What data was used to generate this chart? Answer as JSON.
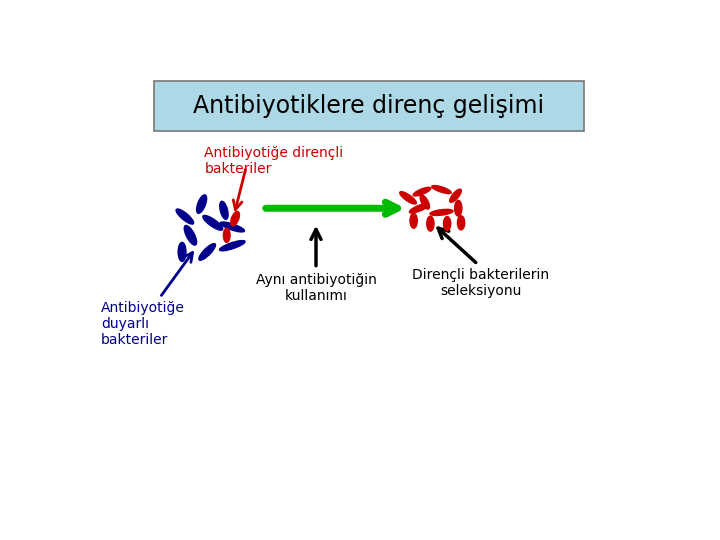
{
  "title": "Antibiyotiklere direnç gelişimi",
  "title_bg": "#add8e6",
  "label_resistant_left": "Antibiyotiğe dirençli\nbakteriler",
  "label_sensitive": "Antibiyotiğe\nduyarlı\nbakteriler",
  "label_middle": "Aynı antibiyotiğin\nkullanımı",
  "label_resistant_right": "Dirençli bakterilerin\nseleksiyonu",
  "color_resistant": "#cc0000",
  "color_sensitive": "#00008b",
  "color_arrow_green": "#00bb00",
  "color_arrow_black": "#000000",
  "color_arrow_red": "#cc0000",
  "bg_color": "#ffffff",
  "blue_bacteria": [
    [
      2.2,
      6.2,
      135,
      0.48,
      0.15
    ],
    [
      1.8,
      5.9,
      110,
      0.5,
      0.15
    ],
    [
      1.65,
      5.5,
      90,
      0.46,
      0.14
    ],
    [
      2.1,
      5.5,
      55,
      0.48,
      0.14
    ],
    [
      2.55,
      5.65,
      25,
      0.5,
      0.14
    ],
    [
      2.55,
      6.1,
      155,
      0.48,
      0.14
    ],
    [
      2.0,
      6.65,
      75,
      0.46,
      0.14
    ],
    [
      1.7,
      6.35,
      130,
      0.46,
      0.14
    ],
    [
      2.4,
      6.5,
      100,
      0.44,
      0.13
    ]
  ],
  "red_bacteria_left": [
    [
      2.6,
      6.3,
      75,
      0.36,
      0.13
    ],
    [
      2.45,
      5.9,
      90,
      0.34,
      0.12
    ]
  ],
  "red_bacteria_right": [
    [
      5.7,
      6.8,
      135,
      0.4,
      0.13
    ],
    [
      5.95,
      6.95,
      30,
      0.36,
      0.12
    ],
    [
      6.3,
      7.0,
      155,
      0.38,
      0.12
    ],
    [
      6.55,
      6.85,
      60,
      0.36,
      0.12
    ],
    [
      6.6,
      6.55,
      90,
      0.38,
      0.13
    ],
    [
      6.3,
      6.45,
      10,
      0.42,
      0.13
    ],
    [
      5.9,
      6.55,
      30,
      0.4,
      0.13
    ],
    [
      5.8,
      6.25,
      90,
      0.36,
      0.13
    ],
    [
      6.1,
      6.18,
      90,
      0.36,
      0.13
    ],
    [
      6.4,
      6.18,
      90,
      0.34,
      0.13
    ],
    [
      6.65,
      6.2,
      90,
      0.34,
      0.13
    ],
    [
      6.0,
      6.7,
      110,
      0.36,
      0.12
    ]
  ]
}
